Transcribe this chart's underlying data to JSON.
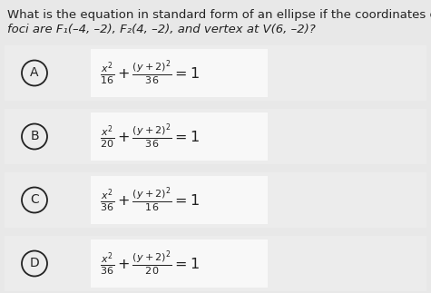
{
  "background_color": "#f0f0f0",
  "box_bg_color": "#ffffff",
  "outer_bg_color": "#e8e8e8",
  "text_color": "#222222",
  "title_line1": "What is the equation in standard form of an ellipse if the coordinates of the",
  "title_line2": "foci are F₁(–4, –2), F₂(4, –2), and vertex at V(6, –2)?",
  "options": [
    {
      "label": "A",
      "denom1": "16",
      "denom2": "36"
    },
    {
      "label": "B",
      "denom1": "20",
      "denom2": "36"
    },
    {
      "label": "C",
      "denom1": "36",
      "denom2": "16"
    },
    {
      "label": "D",
      "denom1": "36",
      "denom2": "20"
    }
  ],
  "title_fontsize": 9.5,
  "formula_fontsize": 11.5,
  "label_fontsize": 10
}
